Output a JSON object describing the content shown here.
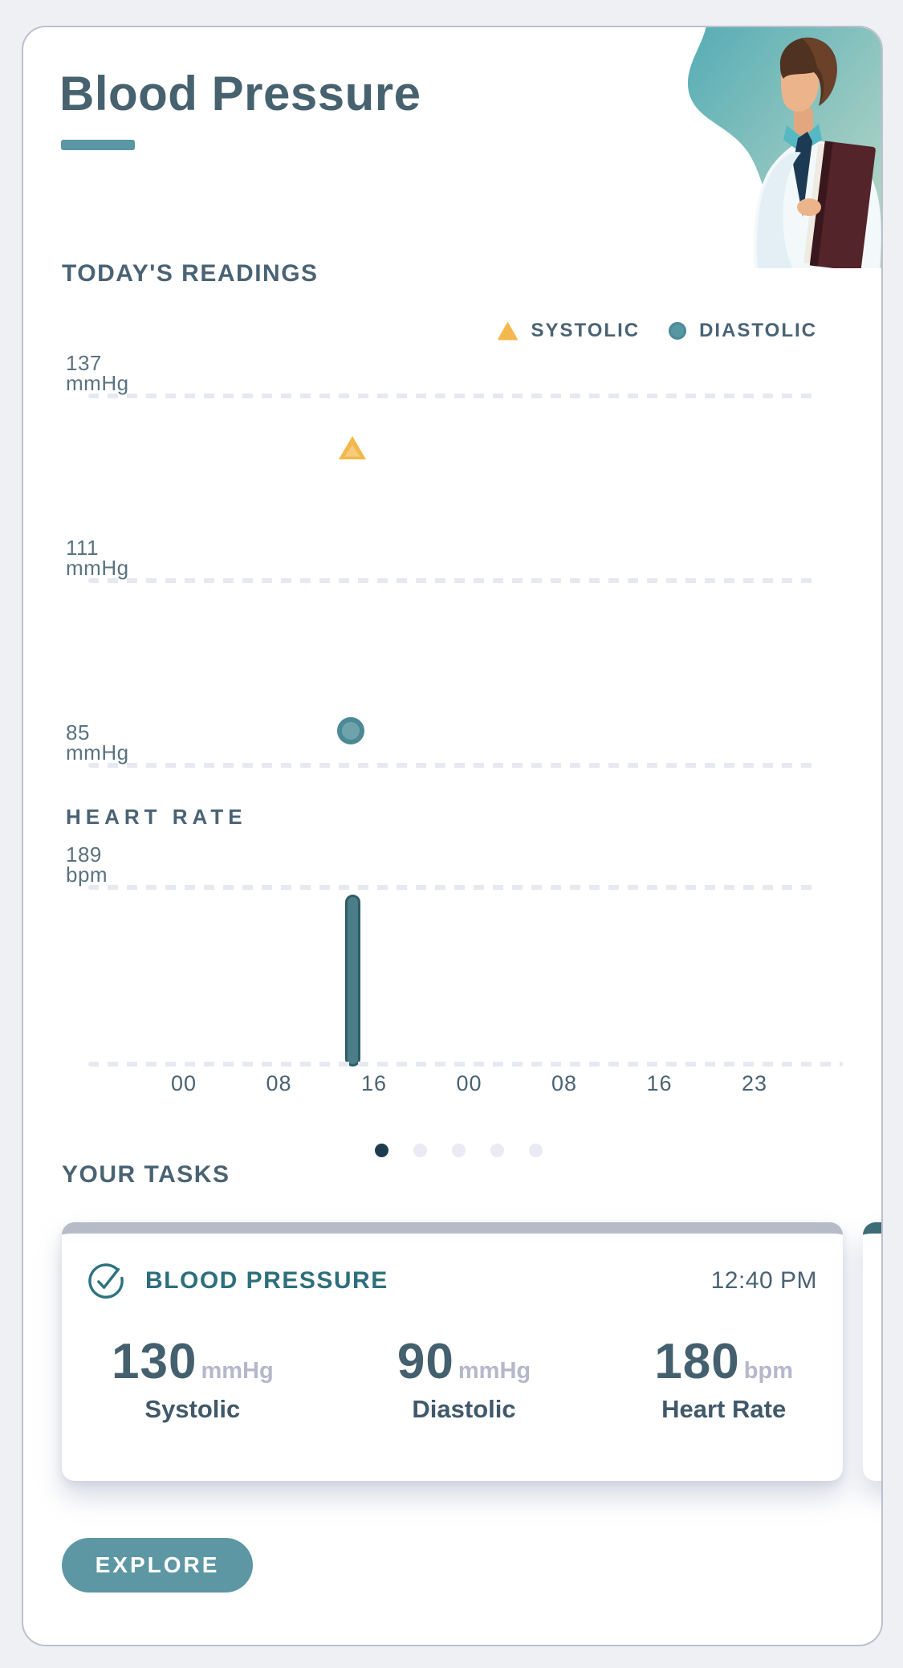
{
  "header": {
    "title": "Blood Pressure"
  },
  "chart_data": [
    {
      "type": "scatter",
      "title": "TODAY'S READINGS",
      "x_ticks": [
        "00",
        "08",
        "16",
        "00",
        "08",
        "16",
        "23"
      ],
      "y_gridlines": [
        {
          "label": "137",
          "unit": "mmHg",
          "value": 137
        },
        {
          "label": "111",
          "unit": "mmHg",
          "value": 111
        },
        {
          "label": "85",
          "unit": "mmHg",
          "value": 85
        }
      ],
      "series": [
        {
          "name": "SYSTOLIC",
          "marker": "triangle",
          "color": "#F2B84B",
          "points": [
            {
              "time": "12:40 PM",
              "value": 130
            }
          ]
        },
        {
          "name": "DIASTOLIC",
          "marker": "circle",
          "color": "#4C8995",
          "points": [
            {
              "time": "12:40 PM",
              "value": 90
            }
          ]
        }
      ],
      "grid": "dashed-horizontal",
      "legend_position": "top-right"
    },
    {
      "type": "bar",
      "title": "HEART RATE",
      "x_ticks": [
        "00",
        "08",
        "16",
        "00",
        "08",
        "16",
        "23"
      ],
      "y_gridlines": [
        {
          "label": "189",
          "unit": "bpm",
          "value": 189
        }
      ],
      "ylim": [
        0,
        189
      ],
      "series": [
        {
          "name": "HEART RATE",
          "color": "#4C7E8A",
          "points": [
            {
              "time": "12:40 PM",
              "value": 180
            }
          ]
        }
      ],
      "grid": "dashed-horizontal"
    }
  ],
  "pagination": {
    "count": 5,
    "active_index": 0
  },
  "tasks": {
    "heading": "YOUR TASKS",
    "card": {
      "icon": "check-circle-icon",
      "title": "BLOOD PRESSURE",
      "time": "12:40 PM",
      "metrics": [
        {
          "value": "130",
          "unit": "mmHg",
          "label": "Systolic"
        },
        {
          "value": "90",
          "unit": "mmHg",
          "label": "Diastolic"
        },
        {
          "value": "180",
          "unit": "bpm",
          "label": "Heart Rate"
        }
      ]
    },
    "explore_label": "EXPLORE"
  },
  "colors": {
    "page_bg": "#EEF0F4",
    "card_border": "#BCC0CD",
    "title_slate": "#47626F",
    "heading_slate": "#4A6374",
    "accent_teal": "#5A96A3",
    "systolic_orange": "#F2B84B",
    "diastolic_teal": "#4C8995",
    "bar_teal": "#4C7E8A",
    "dash_gray": "#E7E9F1",
    "active_dot": "#1D3C50",
    "inactive_dot": "#E9EAF3",
    "card_top_bar": "#B7BBC8",
    "next_card_top_bar": "#3D6B76",
    "task_title_teal": "#2D6F7C",
    "metric_value": "#44606E",
    "metric_unit": "#B5B7CB",
    "explore_bg": "#5D97A3"
  }
}
